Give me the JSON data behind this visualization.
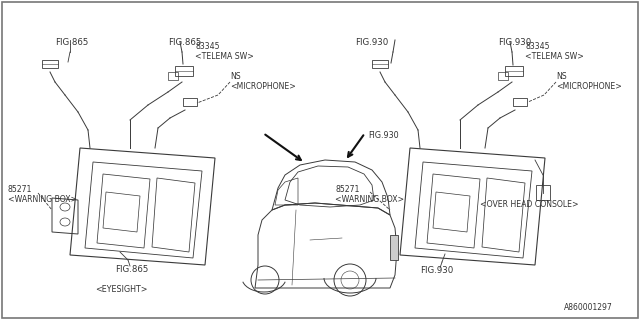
{
  "bg_color": "#f5f5f5",
  "border_color": "#555555",
  "line_color": "#555555",
  "text_color": "#444444",
  "fig_size": [
    6.4,
    3.2
  ],
  "dpi": 100,
  "part_number": "A860001297",
  "labels": {
    "fig865_top_left": "FIG.865",
    "fig865_connector": "FIG.865",
    "part_83345_left": "83345\n<TELEMA SW>",
    "ns_microphone_left": "NS\n<MICROPHONE>",
    "part_85271_left": "85271\n<WARNING BOX>",
    "fig865_bottom": "FIG.865",
    "eyesight": "<EYESIGHT>",
    "fig930_top": "FIG.930",
    "fig930_connector": "FIG.930",
    "part_83345_right": "83345\n<TELEMA SW>",
    "ns_microphone_right": "NS\n<MICROPHONE>",
    "part_85271_right": "85271\n<WARNING BOX>",
    "fig930_label": "FIG.930",
    "over_head_console": "<OVER HEAD CONSOLE>"
  }
}
